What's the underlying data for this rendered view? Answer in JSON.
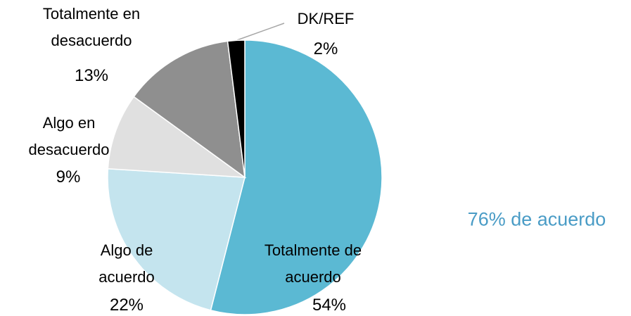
{
  "chart_data": {
    "type": "pie",
    "categories": [
      "Totalmente de acuerdo",
      "Algo de acuerdo",
      "Algo en desacuerdo",
      "Totalmente en desacuerdo",
      "DK/REF"
    ],
    "values": [
      54,
      22,
      9,
      13,
      2
    ],
    "value_labels": [
      "54%",
      "22%",
      "9%",
      "13%",
      "2%"
    ],
    "colors": [
      "#5bb9d3",
      "#c4e4ee",
      "#e0e0e0",
      "#8f8f8f",
      "#000000"
    ],
    "annotation": "76% de acuerdo"
  }
}
